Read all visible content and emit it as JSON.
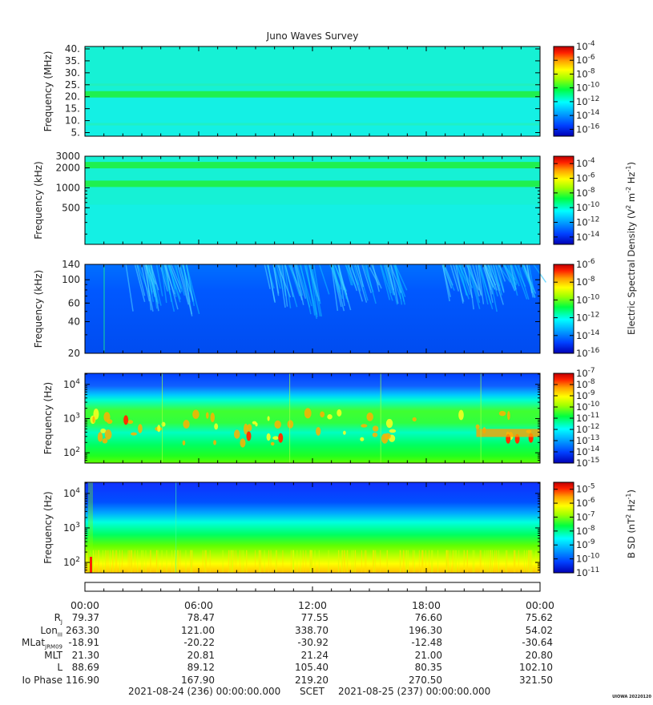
{
  "title": "Juno Waves Survey",
  "colors": {
    "background_cyan": "#14f0e4",
    "frame": "#000000",
    "text": "#222222"
  },
  "colormap": [
    "#0000b4",
    "#0040ff",
    "#00a0ff",
    "#00ffff",
    "#00ff40",
    "#a0ff00",
    "#ffff00",
    "#ffa000",
    "#ff2000",
    "#c00000"
  ],
  "time_axis": {
    "ticks": [
      "00:00",
      "06:00",
      "12:00",
      "18:00",
      "00:00"
    ]
  },
  "ephemeris": {
    "rows": [
      {
        "label": "R",
        "sub": "J",
        "values": [
          "79.37",
          "78.47",
          "77.55",
          "76.60",
          "75.62"
        ]
      },
      {
        "label": "Lon",
        "sub": "III",
        "values": [
          "263.30",
          "121.00",
          "338.70",
          "196.30",
          "54.02"
        ]
      },
      {
        "label": "MLat",
        "sub": "JRM09",
        "values": [
          "-18.91",
          "-20.22",
          "-30.92",
          "-12.48",
          "-30.64"
        ]
      },
      {
        "label": "MLT",
        "sub": "",
        "values": [
          "21.30",
          "20.81",
          "21.24",
          "21.00",
          "20.80"
        ]
      },
      {
        "label": "L",
        "sub": "",
        "values": [
          "88.69",
          "89.12",
          "105.40",
          "80.35",
          "102.10"
        ]
      },
      {
        "label": "Io Phase",
        "sub": "",
        "values": [
          "116.90",
          "167.90",
          "219.20",
          "270.50",
          "321.50"
        ]
      }
    ]
  },
  "footer": {
    "start": "2021-08-24 (236) 00:00:00.000",
    "scet": "SCET",
    "end": "2021-08-25 (237) 00:00:00.000"
  },
  "credit": "UIOWA 20220120",
  "chart_data": [
    {
      "type": "heatmap",
      "ylabel": "Frequency (MHz)",
      "yscale": "linear",
      "ylim": [
        3.5,
        41
      ],
      "yticks": [
        "40.",
        "35.",
        "30.",
        "25.",
        "20.",
        "15.",
        "10.",
        "5."
      ],
      "ytick_values": [
        40,
        35,
        30,
        25,
        20,
        15,
        10,
        5
      ],
      "colorbar": {
        "exponents": [
          "-4",
          "-6",
          "-8",
          "-10",
          "-12",
          "-14",
          "-16"
        ],
        "range": [
          -17,
          -4
        ]
      },
      "bands": [
        {
          "center": 21.0,
          "level": "green"
        },
        {
          "center": 25.0,
          "level": "faint"
        },
        {
          "center": 8.5,
          "level": "faint"
        }
      ]
    },
    {
      "type": "heatmap",
      "ylabel": "Frequency (kHz)",
      "yscale": "log",
      "ylim": [
        140,
        3000
      ],
      "yticks": [
        "3000",
        "2000",
        "1000",
        "500"
      ],
      "ytick_values": [
        3000,
        2000,
        1000,
        500
      ],
      "colorbar": {
        "exponents": [
          "-4",
          "-6",
          "-8",
          "-10",
          "-12",
          "-14"
        ],
        "range": [
          -15,
          -3
        ]
      },
      "bands": [
        {
          "center": 2200,
          "level": "green"
        },
        {
          "center": 1150,
          "level": "green"
        }
      ],
      "shared_colorbar_label": "Electric Spectral Density (V2 m-2 Hz-1)"
    },
    {
      "type": "heatmap",
      "ylabel": "Frequency (kHz)",
      "yscale": "log",
      "ylim": [
        20,
        140
      ],
      "yticks": [
        "140",
        "100",
        "60",
        "40",
        "20"
      ],
      "ytick_values": [
        140,
        100,
        60,
        40,
        20
      ],
      "colorbar": {
        "exponents": [
          "-6",
          "-8",
          "-10",
          "-12",
          "-14",
          "-16"
        ],
        "range": [
          -16,
          -6
        ]
      }
    },
    {
      "type": "heatmap",
      "ylabel": "Frequency (Hz)",
      "yscale": "log",
      "ylim": [
        50,
        21000
      ],
      "yticks": [
        "10^4",
        "10^3",
        "10^2"
      ],
      "ytick_values": [
        10000,
        1000,
        100
      ],
      "colorbar": {
        "exponents": [
          "-7",
          "-8",
          "-9",
          "-10",
          "-11",
          "-12",
          "-13",
          "-14",
          "-15"
        ],
        "range": [
          -15,
          -7
        ]
      }
    },
    {
      "type": "heatmap",
      "ylabel": "Frequency (Hz)",
      "yscale": "log",
      "ylim": [
        50,
        21000
      ],
      "yticks": [
        "10^4",
        "10^3",
        "10^2"
      ],
      "ytick_values": [
        10000,
        1000,
        100
      ],
      "colorbar": {
        "exponents": [
          "-5",
          "-6",
          "-7",
          "-8",
          "-9",
          "-10",
          "-11"
        ],
        "range": [
          -11,
          -4.5
        ],
        "label": "B SD (nT2 Hz-1)"
      }
    }
  ]
}
